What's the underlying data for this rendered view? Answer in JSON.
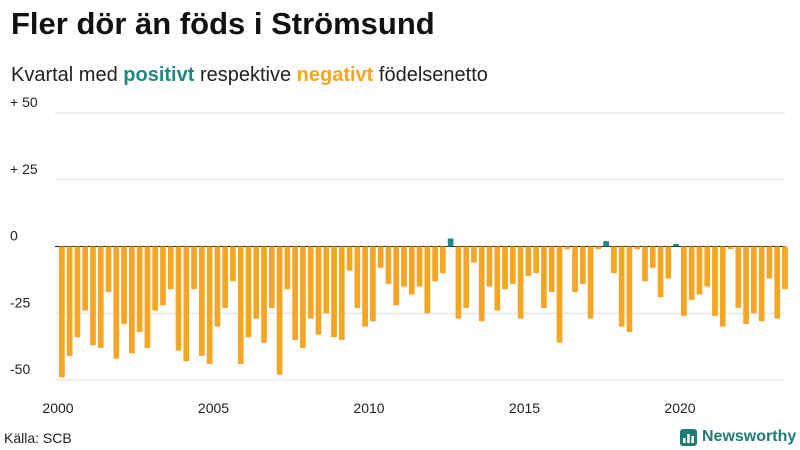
{
  "title": "Fler dör än föds i Strömsund",
  "subtitle": {
    "prefix": "Kvartal med ",
    "positive": "positivt",
    "middle": " respektive ",
    "negative": "negativt",
    "suffix": " födelsenetto"
  },
  "source": "Källa: SCB",
  "brand": "Newsworthy",
  "colors": {
    "positive": "#1f8a82",
    "negative": "#f5a623",
    "grid": "#dddddd",
    "axis": "#222222",
    "brand": "#1f7a76"
  },
  "chart_data": {
    "type": "bar",
    "title": "Fler dör än föds i Strömsund",
    "subtitle": "Kvartal med positivt respektive negativt födelsenetto",
    "xlabel": "",
    "ylabel": "",
    "ylim": [
      -50,
      50
    ],
    "grid": true,
    "y_ticks": [
      {
        "value": 50,
        "label": "+ 50"
      },
      {
        "value": 25,
        "label": "+ 25"
      },
      {
        "value": 0,
        "label": "0"
      },
      {
        "value": -25,
        "label": "-25"
      },
      {
        "value": -50,
        "label": "-50"
      }
    ],
    "x_ticks": [
      {
        "value": 2000,
        "label": "2000"
      },
      {
        "value": 2005,
        "label": "2005"
      },
      {
        "value": 2010,
        "label": "2010"
      },
      {
        "value": 2015,
        "label": "2015"
      },
      {
        "value": 2020,
        "label": "2020"
      }
    ],
    "start_year": 2000,
    "quarters_per_year": 4,
    "values": [
      -49,
      -41,
      -34,
      -24,
      -37,
      -38,
      -17,
      -42,
      -29,
      -40,
      -32,
      -38,
      -24,
      -22,
      -16,
      -39,
      -43,
      -16,
      -41,
      -44,
      -30,
      -23,
      -13,
      -44,
      -34,
      -27,
      -36,
      -23,
      -48,
      -16,
      -35,
      -38,
      -27,
      -33,
      -25,
      -34,
      -35,
      -9,
      -23,
      -30,
      -28,
      -8,
      -14,
      -22,
      -15,
      -18,
      -15,
      -25,
      -13,
      -10,
      3,
      -27,
      -23,
      -6,
      -28,
      -15,
      -24,
      -16,
      -14,
      -27,
      -11,
      -10,
      -23,
      -17,
      -36,
      -1,
      -17,
      -14,
      -27,
      -1,
      2,
      -10,
      -30,
      -32,
      -1,
      -13,
      -8,
      -19,
      -12,
      1,
      -26,
      -20,
      -18,
      -15,
      -26,
      -30,
      -1,
      -23,
      -29,
      -25,
      -28,
      -12,
      -27,
      -16
    ]
  }
}
